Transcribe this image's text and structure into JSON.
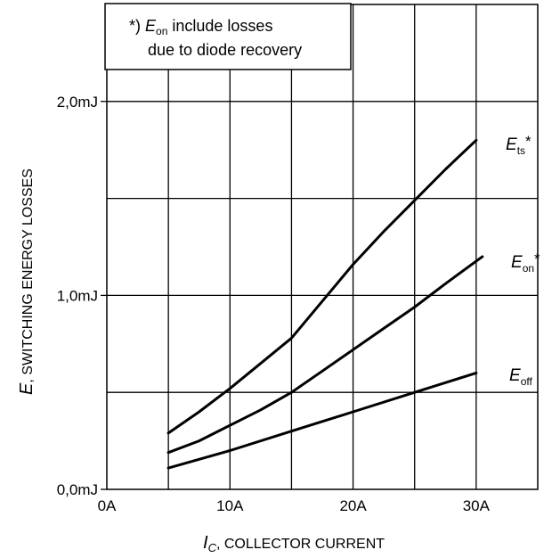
{
  "chart_data": {
    "type": "line",
    "xlabel": {
      "symbol": "I",
      "subscript": "C",
      "text": ", COLLECTOR CURRENT"
    },
    "ylabel": {
      "symbol": "E",
      "text": ", SWITCHING ENERGY LOSSES"
    },
    "xlim": [
      0,
      35
    ],
    "ylim": [
      0,
      2.5
    ],
    "x_ticks": [
      {
        "value": 0,
        "label": "0A"
      },
      {
        "value": 10,
        "label": "10A"
      },
      {
        "value": 20,
        "label": "20A"
      },
      {
        "value": 30,
        "label": "30A"
      }
    ],
    "y_ticks": [
      {
        "value": 0,
        "label": "0,0mJ"
      },
      {
        "value": 1,
        "label": "1,0mJ"
      },
      {
        "value": 2,
        "label": "2,0mJ"
      }
    ],
    "x_grid": [
      5,
      10,
      15,
      20,
      25,
      30
    ],
    "y_grid": [
      0.5,
      1.0,
      1.5,
      2.0
    ],
    "series": [
      {
        "name": {
          "symbol": "E",
          "subscript": "ts",
          "suffix": "*"
        },
        "x": [
          5,
          7.5,
          10,
          12.5,
          15,
          17.5,
          20,
          22.5,
          25,
          27.5,
          30
        ],
        "values": [
          0.29,
          0.4,
          0.52,
          0.65,
          0.78,
          0.97,
          1.16,
          1.33,
          1.49,
          1.65,
          1.8
        ]
      },
      {
        "name": {
          "symbol": "E",
          "subscript": "on",
          "suffix": "*"
        },
        "x": [
          5,
          7.5,
          10,
          12.5,
          15,
          17.5,
          20,
          22.5,
          25,
          27.5,
          30.5
        ],
        "values": [
          0.19,
          0.25,
          0.33,
          0.41,
          0.5,
          0.61,
          0.72,
          0.83,
          0.94,
          1.06,
          1.2
        ]
      },
      {
        "name": {
          "symbol": "E",
          "subscript": "off",
          "suffix": ""
        },
        "x": [
          5,
          10,
          15,
          20,
          25,
          30
        ],
        "values": [
          0.11,
          0.2,
          0.3,
          0.4,
          0.5,
          0.6
        ]
      }
    ],
    "annotation": {
      "prefix": "*) ",
      "symbol": "E",
      "subscript": "on",
      "line1_rest": " include losses",
      "line2": "due to diode recovery"
    }
  }
}
